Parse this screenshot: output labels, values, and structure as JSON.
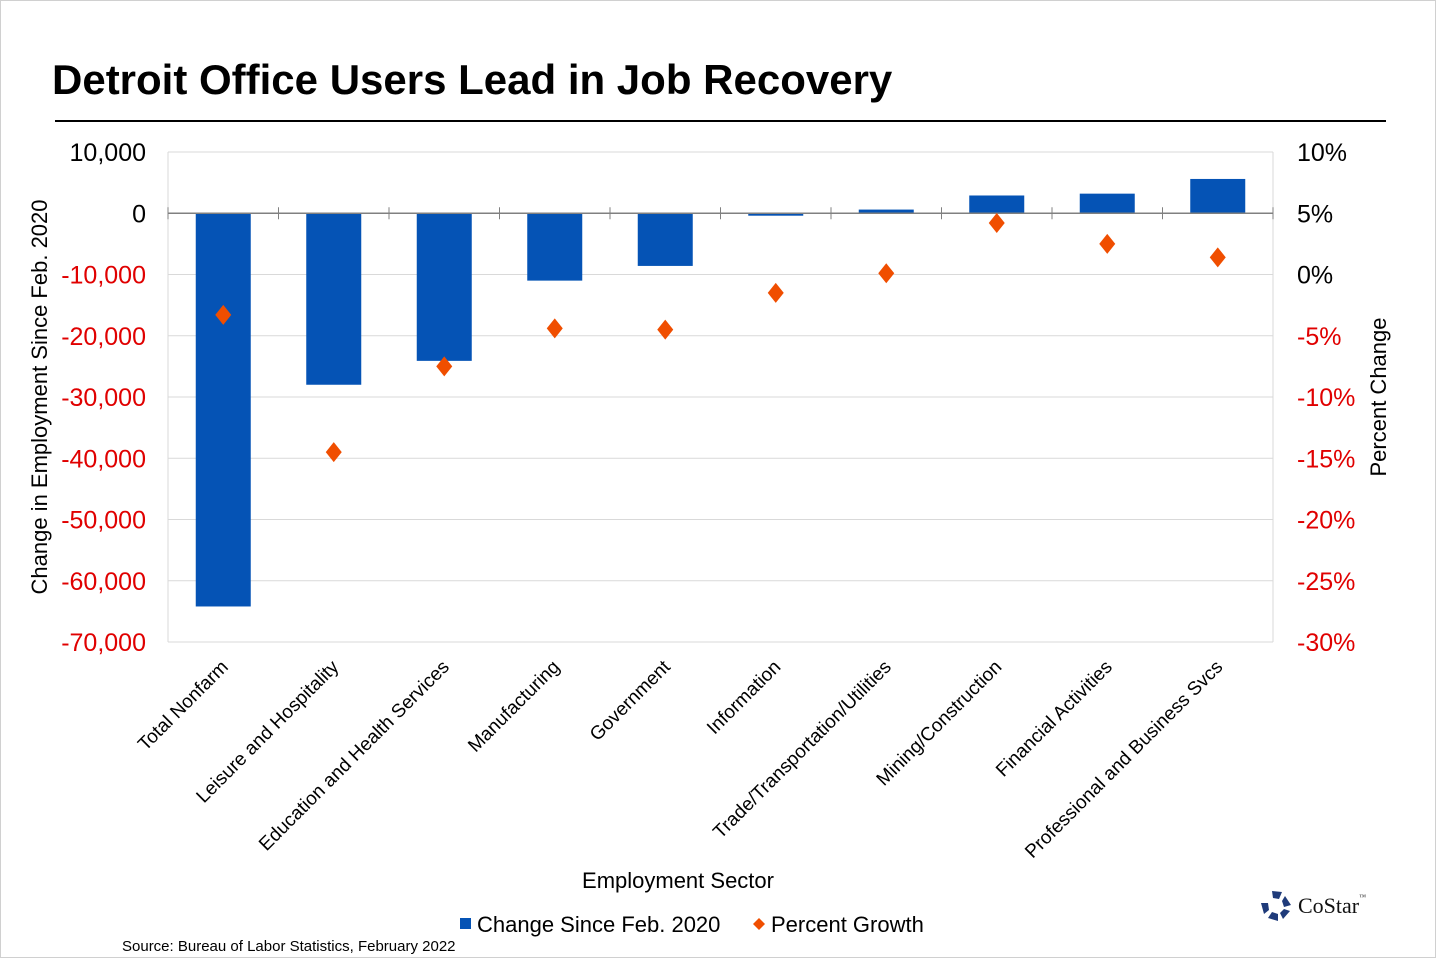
{
  "chart_data": {
    "type": "bar+scatter",
    "title": "Detroit Office Users Lead in Job Recovery",
    "xlabel": "Employment Sector",
    "ylabel": "Change in Employment Since Feb. 2020",
    "y2label": "Percent Change",
    "categories": [
      "Total Nonfarm",
      "Leisure and Hospitality",
      "Education and Health Services",
      "Manufacturing",
      "Government",
      "Information",
      "Trade/Transportation/Utilities",
      "Mining/Construction",
      "Financial Activities",
      "Professional and Business Svcs"
    ],
    "series": [
      {
        "name": "Change Since Feb. 2020",
        "type": "bar",
        "axis": "left",
        "color": "#0553b5",
        "values": [
          -64200,
          -28000,
          -24100,
          -11000,
          -8600,
          -400,
          600,
          2900,
          3200,
          5600
        ]
      },
      {
        "name": "Percent Growth",
        "type": "scatter",
        "marker": "diamond",
        "axis": "right",
        "color": "#f04e00",
        "values": [
          -3.3,
          -14.5,
          -7.5,
          -4.4,
          -4.5,
          -1.5,
          0.1,
          4.2,
          2.5,
          1.4
        ]
      }
    ],
    "ylim": [
      -70000,
      10000
    ],
    "y2lim": [
      -30,
      10
    ],
    "yticks": [
      "10,000",
      "0",
      "-10,000",
      "-20,000",
      "-30,000",
      "-40,000",
      "-50,000",
      "-60,000",
      "-70,000"
    ],
    "y2ticks": [
      "10%",
      "5%",
      "0%",
      "-5%",
      "-10%",
      "-15%",
      "-20%",
      "-25%",
      "-30%"
    ],
    "negative_tick_color": "#e00000",
    "grid": true,
    "legend_position": "bottom"
  },
  "source": "Source: Bureau of Labor Statistics, February 2022",
  "logo": {
    "text": "CoStar",
    "tm": "™"
  }
}
